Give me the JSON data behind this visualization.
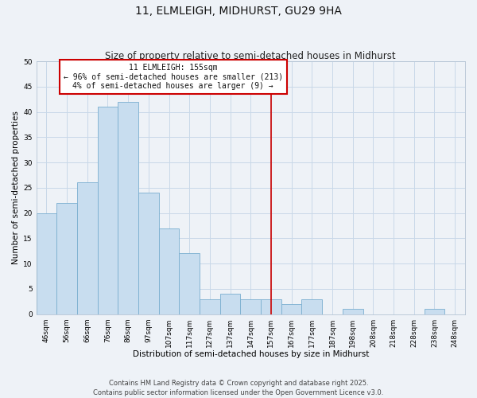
{
  "title": "11, ELMLEIGH, MIDHURST, GU29 9HA",
  "subtitle": "Size of property relative to semi-detached houses in Midhurst",
  "xlabel": "Distribution of semi-detached houses by size in Midhurst",
  "ylabel": "Number of semi-detached properties",
  "bar_labels": [
    "46sqm",
    "56sqm",
    "66sqm",
    "76sqm",
    "86sqm",
    "97sqm",
    "107sqm",
    "117sqm",
    "127sqm",
    "137sqm",
    "147sqm",
    "157sqm",
    "167sqm",
    "177sqm",
    "187sqm",
    "198sqm",
    "208sqm",
    "218sqm",
    "228sqm",
    "238sqm",
    "248sqm"
  ],
  "bar_values": [
    20,
    22,
    26,
    41,
    42,
    24,
    17,
    12,
    3,
    4,
    3,
    3,
    2,
    3,
    0,
    1,
    0,
    0,
    0,
    1,
    0
  ],
  "bar_color": "#c8ddef",
  "bar_edge_color": "#7aaed0",
  "grid_color": "#c8d8e8",
  "background_color": "#eef2f7",
  "vline_x_idx": 11,
  "vline_color": "#cc0000",
  "annotation_title": "11 ELMLEIGH: 155sqm",
  "annotation_line1": "← 96% of semi-detached houses are smaller (213)",
  "annotation_line2": "4% of semi-detached houses are larger (9) →",
  "annotation_box_facecolor": "#ffffff",
  "annotation_box_edgecolor": "#cc0000",
  "ylim": [
    0,
    50
  ],
  "yticks": [
    0,
    5,
    10,
    15,
    20,
    25,
    30,
    35,
    40,
    45,
    50
  ],
  "footer_line1": "Contains HM Land Registry data © Crown copyright and database right 2025.",
  "footer_line2": "Contains public sector information licensed under the Open Government Licence v3.0.",
  "title_fontsize": 10,
  "subtitle_fontsize": 8.5,
  "ylabel_fontsize": 7.5,
  "xlabel_fontsize": 7.5,
  "tick_fontsize": 6.5,
  "annotation_fontsize": 7,
  "footer_fontsize": 6
}
